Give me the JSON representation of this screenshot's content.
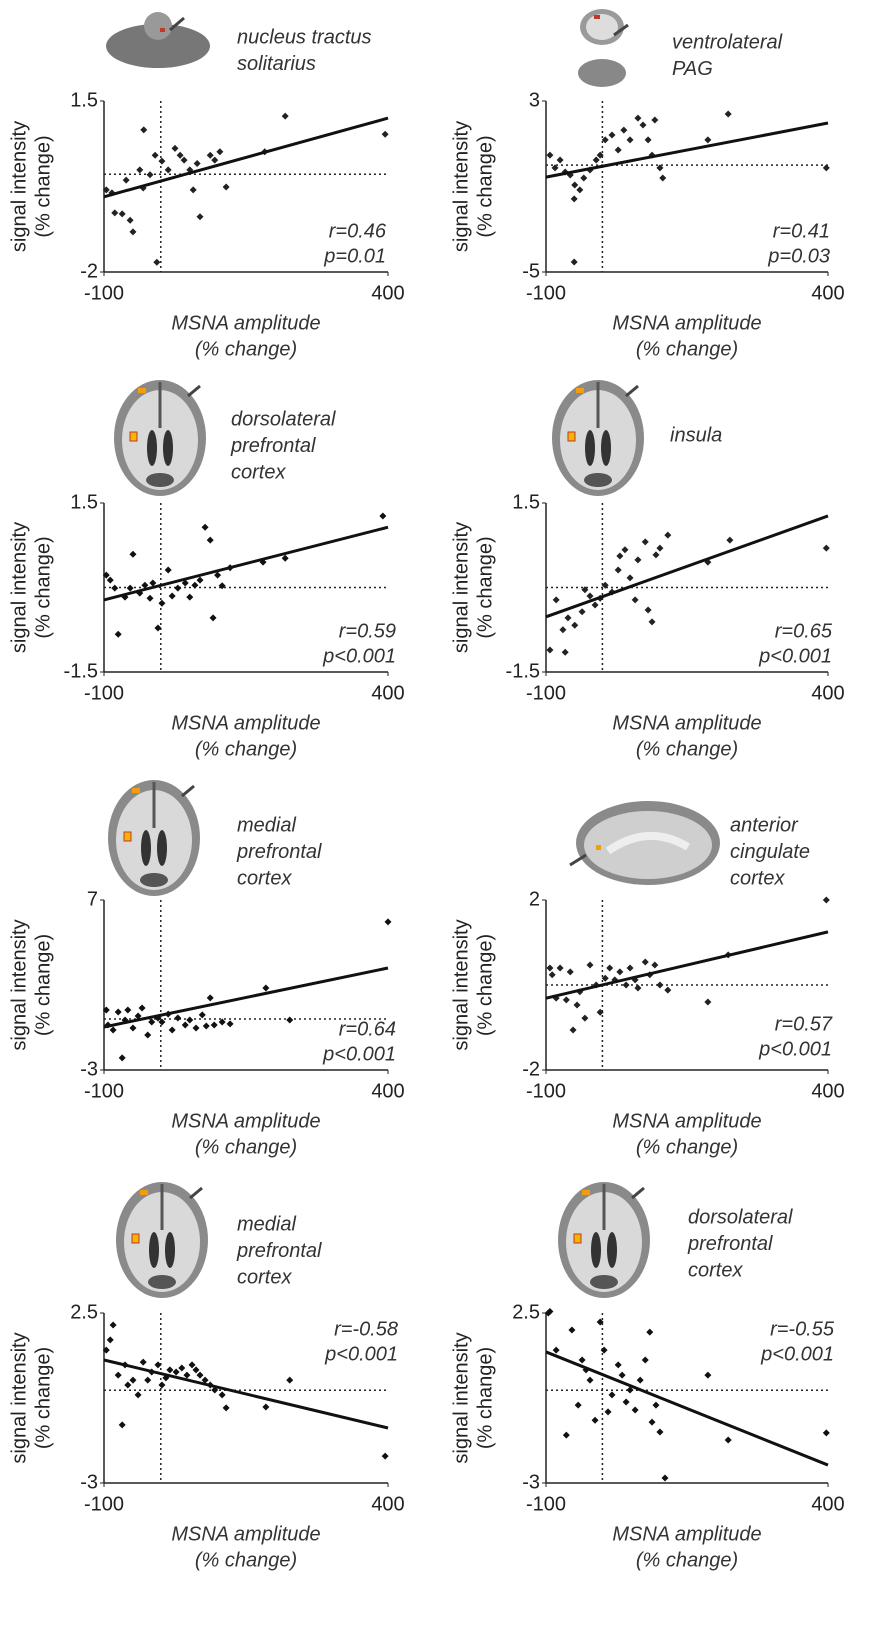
{
  "chart_data": [
    {
      "type": "scatter",
      "region": [
        "nucleus tractus",
        "solitarius"
      ],
      "annotation": [
        "r=0.46",
        "p=0.01"
      ],
      "x_label": [
        "MSNA amplitude",
        "(% change)"
      ],
      "y_label": [
        "signal intensity",
        "(% change)"
      ],
      "color": "#222222",
      "x": [
        -96,
        -86,
        -81,
        -68,
        -61,
        -54,
        -49,
        -37,
        -31,
        -30,
        -19,
        -10,
        -7,
        2,
        13,
        25,
        34,
        41,
        51,
        57,
        64,
        69,
        87,
        95,
        104,
        115,
        183,
        219,
        395
      ],
      "y": [
        -0.32,
        -0.38,
        -0.79,
        -0.81,
        -0.12,
        -0.94,
        -1.18,
        0.09,
        -0.28,
        0.91,
        -0.01,
        0.39,
        -1.8,
        0.27,
        0.09,
        0.53,
        0.39,
        0.29,
        0.09,
        -0.32,
        0.22,
        -0.87,
        0.39,
        0.29,
        0.46,
        -0.26,
        0.46,
        1.19,
        0.82
      ],
      "fit": {
        "x": [
          -100,
          400
        ],
        "y": [
          -0.46,
          1.15
        ]
      },
      "vline": 0,
      "hline": 0,
      "xlim": [
        -100,
        400
      ],
      "ylim": [
        -2,
        1.5
      ],
      "xticks": [
        -100,
        400
      ],
      "yticks": [
        -2,
        1.5
      ]
    },
    {
      "type": "scatter",
      "region": [
        "ventrolateral",
        "PAG"
      ],
      "annotation": [
        "r=0.41",
        "p=0.03"
      ],
      "x_label": [
        "MSNA amplitude",
        "(% change)"
      ],
      "y_label": [
        "signal intensity",
        "(% change)"
      ],
      "color": "#222222",
      "x": [
        -93,
        -84,
        -75,
        -66,
        -57,
        -50,
        -49,
        -40,
        -33,
        -50,
        -22,
        -11,
        -4,
        5,
        17,
        28,
        38,
        49,
        63,
        72,
        81,
        88,
        93,
        102,
        107,
        187,
        223,
        397
      ],
      "y": [
        0.47,
        -0.13,
        0.24,
        -0.32,
        -0.46,
        -1.58,
        -0.93,
        -1.16,
        -0.6,
        -4.53,
        -0.23,
        0.24,
        0.47,
        1.18,
        1.41,
        0.71,
        1.64,
        1.18,
        2.2,
        1.88,
        1.18,
        0.47,
        2.11,
        -0.13,
        -0.6,
        1.18,
        2.39,
        -0.13
      ],
      "fit": {
        "x": [
          -100,
          400
        ],
        "y": [
          -0.56,
          1.97
        ]
      },
      "vline": 0,
      "hline": 0,
      "xlim": [
        -100,
        400
      ],
      "ylim": [
        -5,
        3
      ],
      "xticks": [
        -100,
        400
      ],
      "yticks": [
        -5,
        3
      ]
    },
    {
      "type": "scatter",
      "region": [
        "dorsolateral",
        "prefrontal",
        "cortex"
      ],
      "annotation": [
        "r=0.59",
        "p<0.001"
      ],
      "x_label": [
        "MSNA amplitude",
        "(% change)"
      ],
      "y_label": [
        "signal intensity",
        "(% change)"
      ],
      "color": "#111111",
      "x": [
        -96,
        -89,
        -81,
        -75,
        -63,
        -54,
        -49,
        -37,
        -28,
        -19,
        -14,
        -5,
        2,
        13,
        20,
        30,
        43,
        51,
        60,
        69,
        78,
        87,
        92,
        100,
        108,
        122,
        180,
        219,
        391
      ],
      "y": [
        0.22,
        0.13,
        -0.01,
        -0.83,
        -0.17,
        -0.01,
        0.59,
        -0.1,
        0.04,
        -0.19,
        0.08,
        -0.72,
        -0.28,
        0.31,
        -0.15,
        -0.01,
        0.08,
        -0.17,
        0.04,
        0.13,
        1.07,
        0.84,
        -0.54,
        0.22,
        0.03,
        0.35,
        0.45,
        0.52,
        1.27
      ],
      "fit": {
        "x": [
          -100,
          400
        ],
        "y": [
          -0.22,
          1.07
        ]
      },
      "vline": 0,
      "hline": 0,
      "xlim": [
        -100,
        400
      ],
      "ylim": [
        -1.5,
        1.5
      ],
      "xticks": [
        -100,
        400
      ],
      "yticks": [
        -1.5,
        1.5
      ]
    },
    {
      "type": "scatter",
      "region": [
        "insula"
      ],
      "annotation": [
        "r=0.65",
        "p<0.001"
      ],
      "x_label": [
        "MSNA amplitude",
        "(% change)"
      ],
      "y_label": [
        "signal intensity",
        "(% change)"
      ],
      "color": "#222222",
      "x": [
        -93,
        -66,
        -82,
        -70,
        -61,
        -49,
        -36,
        -31,
        -22,
        -13,
        -4,
        5,
        17,
        28,
        31,
        40,
        49,
        58,
        63,
        76,
        81,
        88,
        95,
        102,
        116,
        187,
        226,
        397
      ],
      "y": [
        -1.11,
        -1.15,
        -0.22,
        -0.75,
        -0.54,
        -0.67,
        -0.43,
        -0.04,
        -0.15,
        -0.31,
        -0.19,
        0.04,
        -0.08,
        0.31,
        0.56,
        0.67,
        0.17,
        -0.22,
        0.49,
        0.81,
        -0.4,
        -0.61,
        0.58,
        0.7,
        0.93,
        0.45,
        0.84,
        0.7
      ],
      "fit": {
        "x": [
          -100,
          400
        ],
        "y": [
          -0.52,
          1.27
        ]
      },
      "vline": 0,
      "hline": 0,
      "xlim": [
        -100,
        400
      ],
      "ylim": [
        -1.5,
        1.5
      ],
      "xticks": [
        -100,
        400
      ],
      "yticks": [
        -1.5,
        1.5
      ]
    },
    {
      "type": "scatter",
      "region": [
        "medial",
        "prefrontal",
        "cortex"
      ],
      "annotation": [
        "r=0.64",
        "p<0.001"
      ],
      "x_label": [
        "MSNA amplitude",
        "(% change)"
      ],
      "y_label": [
        "signal intensity",
        "(% change)"
      ],
      "color": "#111111",
      "x": [
        -96,
        -93,
        -84,
        -75,
        -68,
        -63,
        -58,
        -49,
        -40,
        -33,
        -23,
        -16,
        -5,
        2,
        13,
        20,
        30,
        43,
        51,
        62,
        73,
        80,
        87,
        94,
        108,
        122,
        185,
        227,
        400
      ],
      "y": [
        0.53,
        -0.35,
        -0.65,
        0.41,
        -2.29,
        -0.06,
        0.53,
        -0.53,
        0.18,
        0.65,
        -0.94,
        -0.18,
        0.06,
        -0.18,
        0.29,
        -0.65,
        0.06,
        -0.35,
        -0.06,
        -0.53,
        0.24,
        -0.41,
        1.24,
        -0.35,
        -0.18,
        -0.29,
        1.82,
        -0.06,
        5.71
      ],
      "fit": {
        "x": [
          -100,
          400
        ],
        "y": [
          -0.47,
          3.0
        ]
      },
      "vline": 0,
      "hline": 0,
      "xlim": [
        -100,
        400
      ],
      "ylim": [
        -3,
        7
      ],
      "xticks": [
        -100,
        400
      ],
      "yticks": [
        -3,
        7
      ]
    },
    {
      "type": "scatter",
      "region": [
        "anterior",
        "cingulate",
        "cortex"
      ],
      "annotation": [
        "r=0.57",
        "p<0.001"
      ],
      "x_label": [
        "MSNA amplitude",
        "(% change)"
      ],
      "y_label": [
        "signal intensity",
        "(% change)"
      ],
      "color": "#222222",
      "x": [
        -93,
        -89,
        -82,
        -75,
        -64,
        -57,
        -52,
        -45,
        -40,
        -31,
        -22,
        -11,
        -4,
        5,
        13,
        22,
        31,
        42,
        49,
        58,
        63,
        76,
        84,
        93,
        102,
        116,
        187,
        223,
        397
      ],
      "y": [
        0.4,
        0.24,
        -0.31,
        0.4,
        -0.35,
        0.31,
        -1.06,
        -0.47,
        -0.16,
        -0.78,
        0.47,
        0.0,
        -0.64,
        0.16,
        0.4,
        0.12,
        0.31,
        0.0,
        0.4,
        0.12,
        -0.07,
        0.54,
        0.24,
        0.47,
        0.0,
        -0.12,
        -0.4,
        0.71,
        2.0
      ],
      "fit": {
        "x": [
          -100,
          400
        ],
        "y": [
          -0.31,
          1.25
        ]
      },
      "vline": 0,
      "hline": 0,
      "xlim": [
        -100,
        400
      ],
      "ylim": [
        -2,
        2
      ],
      "xticks": [
        -100,
        400
      ],
      "yticks": [
        -2,
        2
      ]
    },
    {
      "type": "scatter",
      "region": [
        "medial",
        "prefrontal",
        "cortex"
      ],
      "annotation": [
        "r=-0.58",
        "p<0.001"
      ],
      "x_label": [
        "MSNA amplitude",
        "(% change)"
      ],
      "y_label": [
        "signal intensity",
        "(% change)"
      ],
      "color": "#111111",
      "x": [
        -96,
        -89,
        -84,
        -75,
        -68,
        -63,
        -58,
        -49,
        -40,
        -31,
        -23,
        -16,
        -5,
        2,
        9,
        16,
        27,
        37,
        46,
        55,
        62,
        69,
        78,
        87,
        95,
        108,
        115,
        185,
        227,
        395
      ],
      "y": [
        1.3,
        1.63,
        2.11,
        0.49,
        -1.12,
        0.82,
        0.17,
        0.33,
        -0.15,
        0.91,
        0.33,
        0.59,
        0.82,
        0.17,
        0.4,
        0.66,
        0.59,
        0.72,
        0.49,
        0.82,
        0.66,
        0.49,
        0.33,
        0.17,
        0.01,
        -0.15,
        -0.57,
        -0.54,
        0.33,
        -2.13
      ],
      "fit": {
        "x": [
          -100,
          400
        ],
        "y": [
          0.98,
          -1.22
        ]
      },
      "vline": 0,
      "hline": 0,
      "xlim": [
        -100,
        400
      ],
      "ylim": [
        -3,
        2.5
      ],
      "xticks": [
        -100,
        400
      ],
      "yticks": [
        -3,
        2.5
      ]
    },
    {
      "type": "scatter",
      "region": [
        "dorsolateral",
        "prefrontal",
        "cortex"
      ],
      "annotation": [
        "r=-0.55",
        "p<0.001"
      ],
      "x_label": [
        "MSNA amplitude",
        "(% change)"
      ],
      "y_label": [
        "signal intensity",
        "(% change)"
      ],
      "color": "#111111",
      "x": [
        -93,
        -96,
        -82,
        -64,
        -54,
        -43,
        -36,
        -29,
        -22,
        -13,
        -4,
        3,
        10,
        17,
        28,
        35,
        42,
        49,
        58,
        67,
        76,
        84,
        88,
        95,
        102,
        111,
        187,
        223,
        397
      ],
      "y": [
        2.55,
        2.5,
        1.3,
        -1.45,
        1.95,
        -0.48,
        0.98,
        0.66,
        0.33,
        -0.97,
        2.21,
        1.3,
        -0.7,
        -0.15,
        0.82,
        0.49,
        -0.38,
        0.01,
        -0.64,
        0.33,
        0.98,
        1.88,
        -1.03,
        -0.48,
        -1.35,
        -2.84,
        0.49,
        -1.61,
        -1.38
      ],
      "fit": {
        "x": [
          -100,
          400
        ],
        "y": [
          1.24,
          -2.42
        ]
      },
      "vline": 0,
      "hline": 0,
      "xlim": [
        -100,
        400
      ],
      "ylim": [
        -3,
        2.5
      ],
      "xticks": [
        -100,
        400
      ],
      "yticks": [
        -3,
        2.5
      ]
    }
  ]
}
